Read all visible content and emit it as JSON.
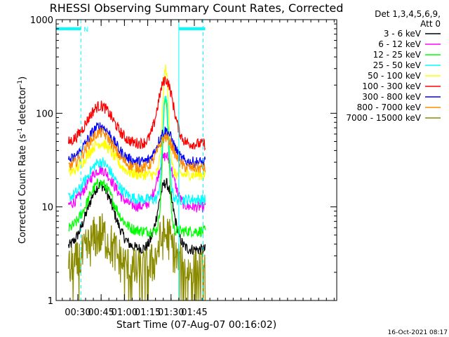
{
  "chart_data": {
    "type": "line",
    "title": "RHESSI Observing Summary Count Rates, Corrected",
    "xlabel": "Start Time (07-Aug-07 00:16:02)",
    "ylabel_main": "Corrected Count Rate (s",
    "ylabel_sup1": "-1",
    "ylabel_mid": " detector",
    "ylabel_sup2": "-1",
    "ylabel_end": ")",
    "yscale": "log",
    "ylim": [
      1,
      1000
    ],
    "xlim_minutes": [
      16.0333,
      196.667
    ],
    "y_ticks": [
      {
        "value": 1,
        "label": "1"
      },
      {
        "value": 10,
        "label": "10"
      },
      {
        "value": 100,
        "label": "100"
      },
      {
        "value": 1000,
        "label": "1000"
      }
    ],
    "x_ticks": [
      {
        "value": 30,
        "label": "00:30"
      },
      {
        "value": 45,
        "label": "00:45"
      },
      {
        "value": 60,
        "label": "01:00"
      },
      {
        "value": 75,
        "label": "01:15"
      },
      {
        "value": 90,
        "label": "01:30"
      },
      {
        "value": 105,
        "label": "01:45"
      }
    ],
    "legend_header": [
      "Det 1,3,4,5,6,9,",
      "Att 0"
    ],
    "legend_placement": "right",
    "night_marker": "N",
    "night_intervals_minutes": [
      [
        16.0333,
        32.0
      ],
      [
        95.0,
        112.0
      ]
    ],
    "flare_peak_minute": 86.5,
    "series": [
      {
        "name": "3 - 6 keV",
        "color": "#000000",
        "peak_hump": 17,
        "peak_flare": 18,
        "base": 3.5
      },
      {
        "name": "6 - 12 keV",
        "color": "#ff00ff",
        "peak_hump": 25,
        "peak_flare": 35,
        "base": 10
      },
      {
        "name": "12 - 25 keV",
        "color": "#00ff00",
        "peak_hump": 18,
        "peak_flare": 150,
        "base": 5.5
      },
      {
        "name": "25 - 50 keV",
        "color": "#00ffff",
        "peak_hump": 30,
        "peak_flare": 160,
        "base": 12
      },
      {
        "name": "50 - 100 keV",
        "color": "#ffff00",
        "peak_hump": 48,
        "peak_flare": 300,
        "base": 22
      },
      {
        "name": "100 - 300 keV",
        "color": "#ff0000",
        "peak_hump": 120,
        "peak_flare": 230,
        "base": 47
      },
      {
        "name": "300 - 800 keV",
        "color": "#0000ff",
        "peak_hump": 72,
        "peak_flare": 65,
        "base": 30
      },
      {
        "name": "800 - 7000 keV",
        "color": "#ff8c00",
        "peak_hump": 62,
        "peak_flare": 55,
        "base": 26
      },
      {
        "name": "7000 - 15000 keV",
        "color": "#8b8b00",
        "peak_hump": 5,
        "peak_flare": 5,
        "base": 2
      }
    ]
  },
  "footer": {
    "timestamp": "16-Oct-2021 08:17"
  }
}
